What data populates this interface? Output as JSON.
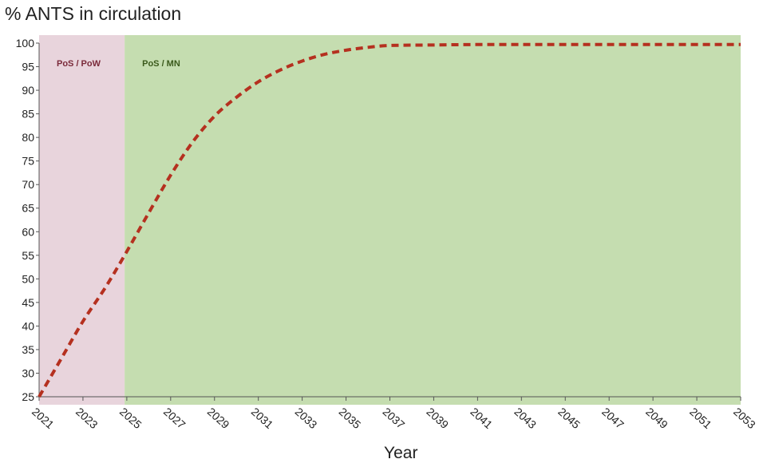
{
  "chart_data": {
    "type": "line",
    "title": "% ANTS in circulation",
    "xlabel": "Year",
    "ylabel": "",
    "xlim": [
      2021,
      2053
    ],
    "ylim": [
      25,
      100
    ],
    "x_ticks": [
      2021,
      2023,
      2025,
      2027,
      2029,
      2031,
      2033,
      2035,
      2037,
      2039,
      2041,
      2043,
      2045,
      2047,
      2049,
      2051,
      2053
    ],
    "y_ticks": [
      25,
      30,
      35,
      40,
      45,
      50,
      55,
      60,
      65,
      70,
      75,
      80,
      85,
      90,
      95,
      100
    ],
    "grid": false,
    "regions": [
      {
        "label": "PoS / PoW",
        "x_start": 2021,
        "x_end": 2024.9,
        "color": "#e8d4dc",
        "text_color": "#7a2a3a"
      },
      {
        "label": "PoS / MN",
        "x_start": 2024.9,
        "x_end": 2053,
        "color": "#c5ddb0",
        "text_color": "#3b5a1c"
      }
    ],
    "series": [
      {
        "color": "#b5301f",
        "style": "dashed",
        "x": [
          2021,
          2022,
          2023,
          2024,
          2024.9,
          2026,
          2027,
          2028,
          2029,
          2030,
          2031,
          2032,
          2033,
          2034,
          2035,
          2036,
          2037,
          2039,
          2041,
          2045,
          2049,
          2053
        ],
        "y": [
          25,
          33,
          41,
          48,
          55,
          64,
          72,
          79,
          84.5,
          88.5,
          91.8,
          94.3,
          96.2,
          97.6,
          98.5,
          99.1,
          99.5,
          99.6,
          99.7,
          99.7,
          99.7,
          99.7
        ]
      }
    ]
  }
}
